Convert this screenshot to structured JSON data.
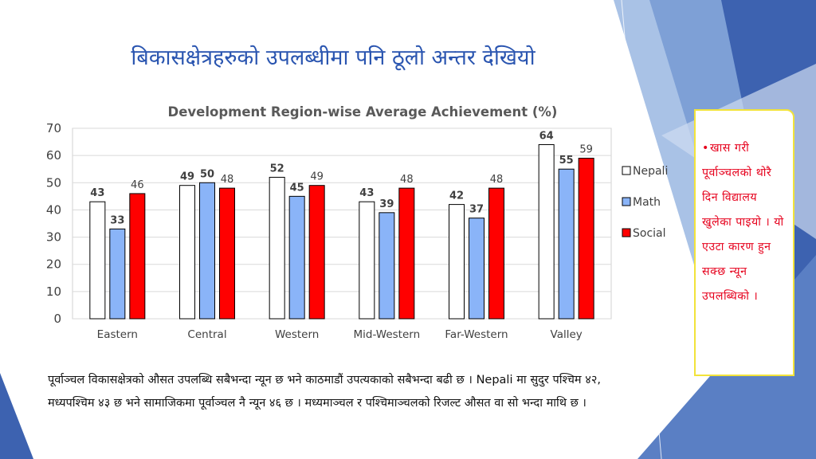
{
  "slide": {
    "title": "बिकासक्षेत्रहरुको उपलब्धीमा पनि ठूलो अन्तर देखियो",
    "body_text": "पूर्वाञ्चल विकासक्षेत्रको औसत उपलब्धि सबैभन्दा न्यून छ भने काठमाडौं उपत्यकाको सबैभन्दा बढी छ । Nepali मा सुदुर पश्चिम ४२, मध्यपश्चिम ४३ छ भने सामाजिकमा पूर्वाञ्चल नै न्यून ४६ छ । मध्यमाञ्चल र पश्चिमाञ्चलको रिजल्ट औसत वा सो भन्दा माथि छ ।",
    "callout": {
      "bullet": "•",
      "text": "खास गरी पूर्वाञ्चलको थोरै दिन विद्यालय खुलेका पाइयो । यो एउटा कारण हुन सक्छ न्यून उपलब्धिको ।",
      "text_color": "#e6001c",
      "border_color": "#f2e33a"
    },
    "colors": {
      "title": "#2a55b0",
      "decor_dark": "#3d62b0",
      "decor_light": "#a9c2e6"
    }
  },
  "chart_data": {
    "type": "bar",
    "title": "Development Region-wise  Average Achievement (%)",
    "xlabel": "",
    "ylabel": "",
    "categories": [
      "Eastern",
      "Central",
      "Western",
      "Mid-Western",
      "Far-Western",
      "Valley"
    ],
    "series": [
      {
        "name": "Nepali",
        "values": [
          43,
          49,
          52,
          43,
          42,
          64
        ],
        "color": "#ffffff",
        "label_bold": true
      },
      {
        "name": "Math",
        "values": [
          33,
          50,
          45,
          39,
          37,
          55
        ],
        "color": "#8ab4f8",
        "label_bold": true
      },
      {
        "name": "Social",
        "values": [
          46,
          48,
          49,
          48,
          48,
          59
        ],
        "color": "#ff0000",
        "label_bold": false
      }
    ],
    "ylim": [
      0,
      70
    ],
    "yticks": [
      0,
      10,
      20,
      30,
      40,
      50,
      60,
      70
    ],
    "grid": "horizontal",
    "legend": "right"
  }
}
